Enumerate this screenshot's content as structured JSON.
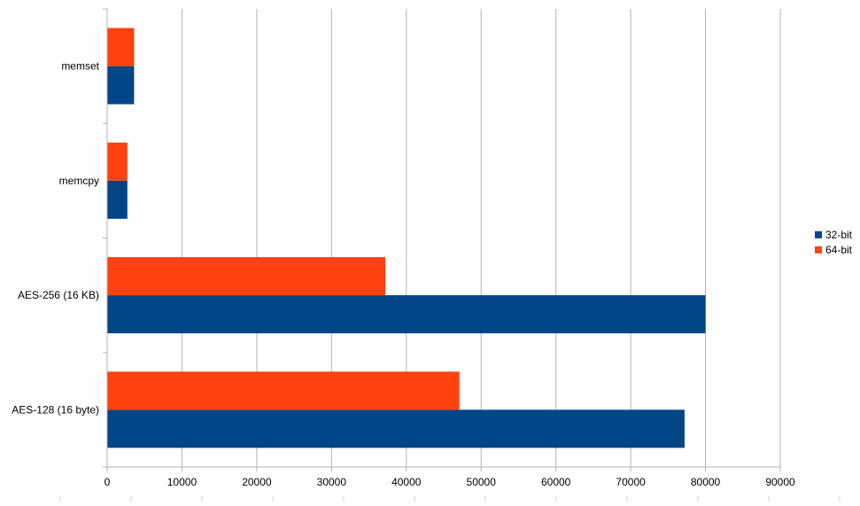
{
  "chart_data": {
    "type": "bar",
    "orientation": "horizontal",
    "categories": [
      "memset",
      "memcpy",
      "AES-256 (16 KB)",
      "AES-128 (16 byte)"
    ],
    "series": [
      {
        "name": "32-bit",
        "color": "#004586",
        "values": [
          3600,
          2700,
          80000,
          77200
        ]
      },
      {
        "name": "64-bit",
        "color": "#ff420e",
        "values": [
          3600,
          2700,
          37200,
          47100
        ]
      }
    ],
    "x_ticks": [
      "0",
      "10000",
      "20000",
      "30000",
      "40000",
      "50000",
      "60000",
      "70000",
      "80000",
      "90000"
    ],
    "xlim": [
      0,
      90000
    ],
    "grid": true,
    "legend_position": "right"
  }
}
